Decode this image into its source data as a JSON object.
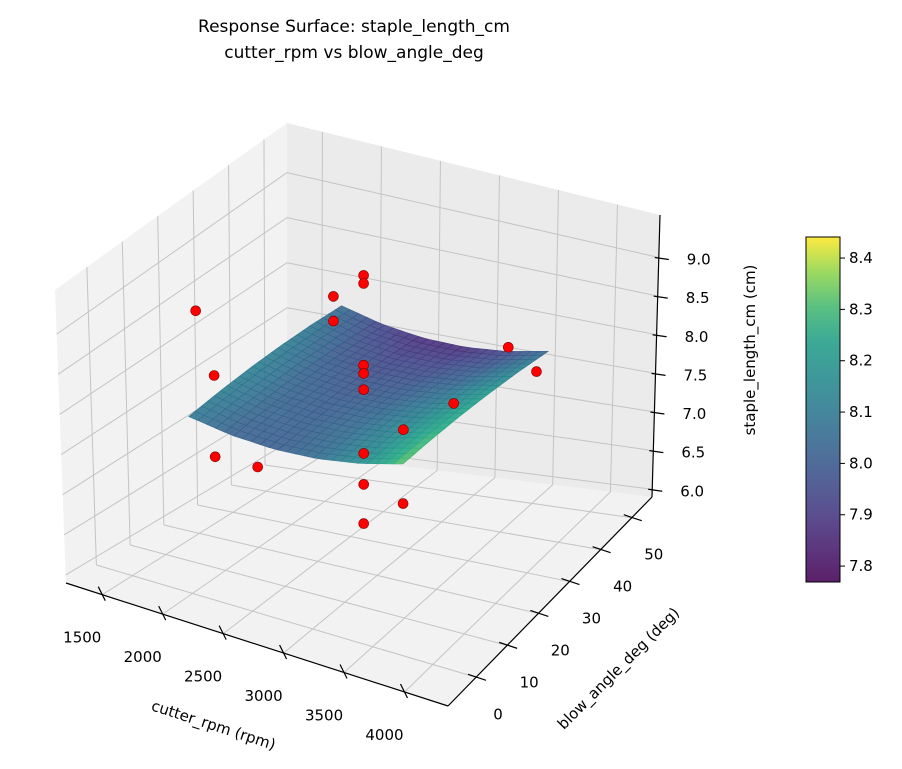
{
  "chart_data": {
    "type": "surface3d",
    "title": [
      "Response Surface: staple_length_cm",
      "cutter_rpm vs blow_angle_deg"
    ],
    "xlabel": "cutter_rpm (rpm)",
    "ylabel": "blow_angle_deg (deg)",
    "zlabel": "staple_length_cm (cm)",
    "xlim": [
      1200,
      4360
    ],
    "ylim": [
      -9,
      56.5
    ],
    "zlim": [
      5.9,
      9.55
    ],
    "xticks": [
      "1500",
      "2000",
      "2500",
      "3000",
      "3500",
      "4000"
    ],
    "yticks": [
      "0",
      "10",
      "20",
      "30",
      "40",
      "50"
    ],
    "zticks": [
      "6.0",
      "6.5",
      "7.0",
      "7.5",
      "8.0",
      "8.5",
      "9.0"
    ],
    "grid": true,
    "colormap": "viridis",
    "surface": {
      "x": [
        2000,
        2350,
        2700,
        3050,
        3400,
        3750
      ],
      "y": [
        0,
        9,
        18,
        27,
        36,
        45
      ],
      "z": [
        [
          8.09,
          8.023,
          8.013,
          8.061,
          8.167,
          8.33
        ],
        [
          8.114,
          8.037,
          8.018,
          8.056,
          8.152,
          8.306
        ],
        [
          8.122,
          8.036,
          8.007,
          8.036,
          8.122,
          8.266
        ],
        [
          8.114,
          8.018,
          7.98,
          7.999,
          8.076,
          8.21
        ],
        [
          8.09,
          7.984,
          7.936,
          7.946,
          8.013,
          8.138
        ],
        [
          8.05,
          7.935,
          7.877,
          7.877,
          7.935,
          8.05
        ]
      ]
    },
    "points": {
      "color": "#ff0000",
      "data": [
        [
          1500,
          20,
          8.55
        ],
        [
          1500,
          25,
          7.64
        ],
        [
          1500,
          25,
          6.68
        ],
        [
          2000,
          20,
          6.87
        ],
        [
          2500,
          25,
          8.97
        ],
        [
          2500,
          25,
          8.67
        ],
        [
          2750,
          25,
          9.33
        ],
        [
          2750,
          25,
          9.23
        ],
        [
          2750,
          25,
          8.23
        ],
        [
          2750,
          25,
          8.13
        ],
        [
          2750,
          25,
          7.93
        ],
        [
          2750,
          25,
          7.15
        ],
        [
          2750,
          25,
          6.77
        ],
        [
          2750,
          25,
          6.29
        ],
        [
          3000,
          28,
          7.43
        ],
        [
          3000,
          28,
          6.52
        ],
        [
          3500,
          25,
          8.05
        ],
        [
          4000,
          23,
          9.04
        ],
        [
          4000,
          32,
          8.38
        ]
      ]
    },
    "colorbar": {
      "vmin": 7.769,
      "vmax": 8.441,
      "ticks": [
        "7.8",
        "7.9",
        "8.0",
        "8.1",
        "8.2",
        "8.3",
        "8.4"
      ]
    }
  }
}
